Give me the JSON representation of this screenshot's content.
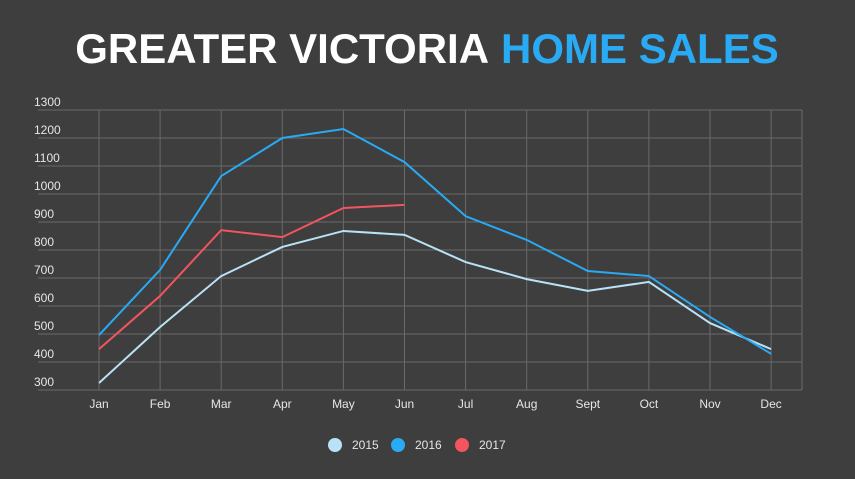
{
  "chart_data": {
    "type": "line",
    "title": "GREATER VICTORIA",
    "title_highlight": "HOME SALES",
    "title_highlight_color": "#29aaf4",
    "categories": [
      "Jan",
      "Feb",
      "Mar",
      "Apr",
      "May",
      "Jun",
      "Jul",
      "Aug",
      "Sept",
      "Oct",
      "Nov",
      "Dec"
    ],
    "series": [
      {
        "name": "2015",
        "color": "#b9e2f7",
        "values": [
          325,
          525,
          707,
          811,
          868,
          854,
          757,
          696,
          654,
          686,
          539,
          446
        ]
      },
      {
        "name": "2016",
        "color": "#29aaf4",
        "values": [
          496,
          729,
          1064,
          1200,
          1232,
          1114,
          921,
          836,
          725,
          707,
          561,
          429
        ]
      },
      {
        "name": "2017",
        "color": "#f2555e",
        "values": [
          446,
          636,
          871,
          846,
          950,
          961,
          null,
          null,
          null,
          null,
          null,
          null
        ]
      }
    ],
    "ylim": [
      300,
      1300
    ],
    "yticks": [
      300,
      400,
      500,
      600,
      700,
      800,
      900,
      1000,
      1100,
      1200,
      1300
    ],
    "grid": true
  }
}
